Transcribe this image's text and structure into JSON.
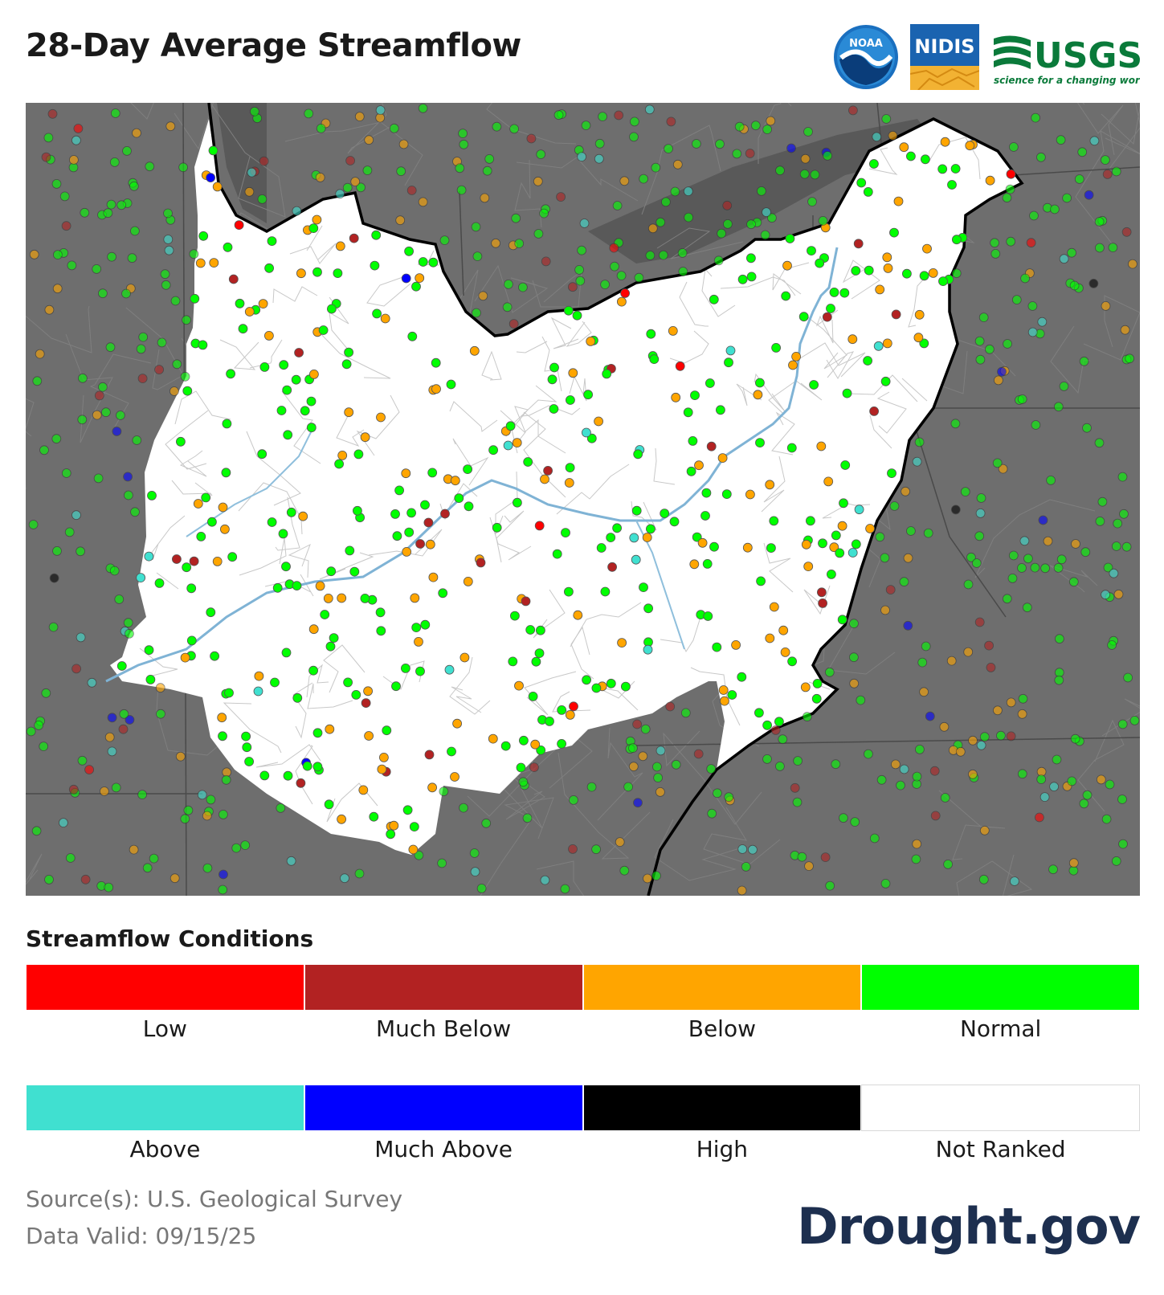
{
  "title": "28-Day Average Streamflow",
  "logos": {
    "noaa": "NOAA",
    "nidis": "NIDIS",
    "usgs": "USGS",
    "usgs_tagline": "science for a changing world"
  },
  "legend": {
    "title": "Streamflow Conditions",
    "rows": [
      [
        {
          "label": "Low",
          "color": "#ff0000"
        },
        {
          "label": "Much Below",
          "color": "#b22222"
        },
        {
          "label": "Below",
          "color": "#ffa500"
        },
        {
          "label": "Normal",
          "color": "#00ff00"
        }
      ],
      [
        {
          "label": "Above",
          "color": "#40e0d0"
        },
        {
          "label": "Much Above",
          "color": "#0000ff"
        },
        {
          "label": "High",
          "color": "#000000"
        },
        {
          "label": "Not Ranked",
          "color": "#ffffff"
        }
      ]
    ]
  },
  "source": {
    "line1": "Source(s): U.S. Geological Survey",
    "line2": "Data Valid: 09/15/25"
  },
  "brand": "Drought.gov",
  "colors": {
    "outside_region": "#6e6e6e",
    "region": "#ffffff",
    "river": "#7fb3d5",
    "border": "#000000",
    "brand": "#1d2f4f"
  }
}
